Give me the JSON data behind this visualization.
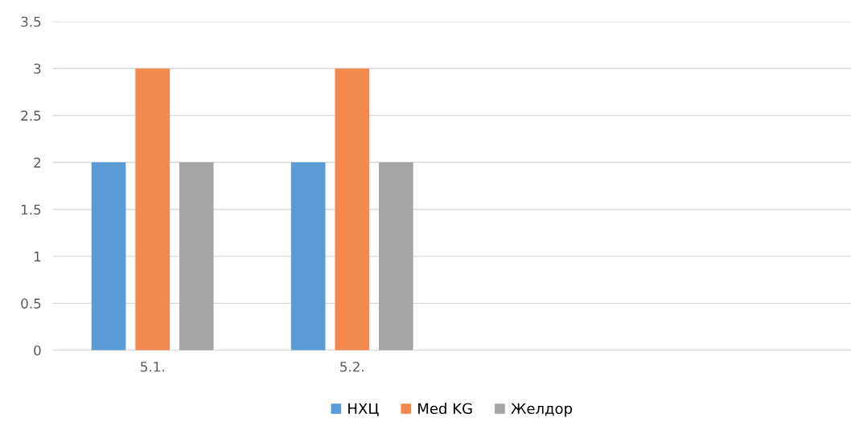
{
  "chart_data": {
    "type": "bar",
    "categories": [
      "5.1.",
      "5.2.",
      null,
      null
    ],
    "series": [
      {
        "name": "НХЦ",
        "color": "#5b9bd5",
        "values": [
          2,
          2,
          null,
          null
        ]
      },
      {
        "name": "Med KG",
        "color": "#f4894f",
        "values": [
          3,
          3,
          null,
          null
        ]
      },
      {
        "name": "Желдор",
        "color": "#a5a5a5",
        "values": [
          2,
          2,
          null,
          null
        ]
      }
    ],
    "ylim": [
      0,
      3.5
    ],
    "yticks": [
      0,
      0.5,
      1,
      1.5,
      2,
      2.5,
      3,
      3.5
    ],
    "grid": "y",
    "legend": "bottom"
  }
}
